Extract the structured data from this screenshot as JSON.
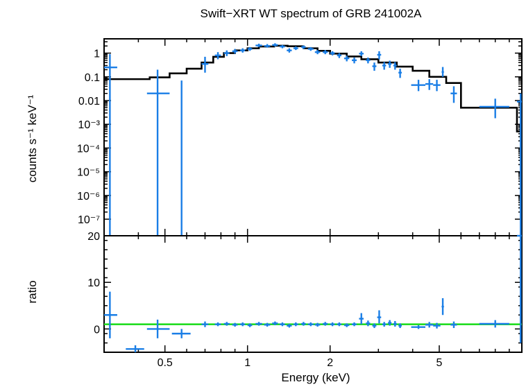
{
  "chart_data": {
    "type": "scatter",
    "title": "Swift−XRT WT spectrum of GRB 241002A",
    "xlabel": "Energy (keV)",
    "xscale": "log",
    "xlim": [
      0.3,
      10
    ],
    "x_ticks": [
      {
        "value": 0.5,
        "label": "0.5"
      },
      {
        "value": 1,
        "label": "1"
      },
      {
        "value": 2,
        "label": "2"
      },
      {
        "value": 5,
        "label": "5"
      }
    ],
    "colors": {
      "data": "#1a7ee6",
      "model": "#000000",
      "unity_line": "#22dd22"
    },
    "panels": [
      {
        "name": "spectrum",
        "ylabel": "counts s⁻¹ keV⁻¹",
        "yscale": "log",
        "ylim": [
          2e-08,
          4
        ],
        "y_ticks": [
          {
            "value": 1,
            "label": "1"
          },
          {
            "value": 0.1,
            "label": "0.1"
          },
          {
            "value": 0.01,
            "label": "0.01"
          },
          {
            "value": 0.001,
            "label": "10⁻³"
          },
          {
            "value": 0.0001,
            "label": "10⁻⁴"
          },
          {
            "value": 1e-05,
            "label": "10⁻⁵"
          },
          {
            "value": 1e-06,
            "label": "10⁻⁶"
          },
          {
            "value": 1e-07,
            "label": "10⁻⁷"
          }
        ],
        "model_step": [
          [
            0.3,
            0.08
          ],
          [
            0.4,
            0.08
          ],
          [
            0.44,
            0.095
          ],
          [
            0.52,
            0.14
          ],
          [
            0.6,
            0.22
          ],
          [
            0.68,
            0.4
          ],
          [
            0.75,
            0.7
          ],
          [
            0.82,
            1.0
          ],
          [
            0.9,
            1.3
          ],
          [
            1.0,
            1.6
          ],
          [
            1.1,
            1.9
          ],
          [
            1.25,
            2.05
          ],
          [
            1.4,
            1.95
          ],
          [
            1.6,
            1.6
          ],
          [
            1.8,
            1.25
          ],
          [
            2.0,
            0.95
          ],
          [
            2.3,
            0.72
          ],
          [
            2.6,
            0.55
          ],
          [
            3.0,
            0.4
          ],
          [
            3.5,
            0.27
          ],
          [
            4.0,
            0.18
          ],
          [
            4.6,
            0.1
          ],
          [
            5.3,
            0.055
          ],
          [
            6.0,
            0.005
          ],
          [
            9.6,
            0.0005
          ],
          [
            10,
            0.0005
          ]
        ],
        "points": [
          {
            "x": 0.315,
            "xlo": 0.3,
            "xhi": 0.335,
            "y": 0.25,
            "ylo": 2e-08,
            "yhi": 0.9
          },
          {
            "x": 0.47,
            "xlo": 0.43,
            "xhi": 0.52,
            "y": 0.02,
            "ylo": 2e-08,
            "yhi": 0.2
          },
          {
            "x": 0.575,
            "xlo": 0.575,
            "xhi": 0.575,
            "y": 0.005,
            "ylo": 2e-08,
            "yhi": 0.07
          },
          {
            "x": 0.7,
            "xlo": 0.68,
            "xhi": 0.72,
            "y": 0.35,
            "ylo": 0.15,
            "yhi": 0.7
          },
          {
            "x": 0.78,
            "xlo": 0.76,
            "xhi": 0.8,
            "y": 0.8,
            "ylo": 0.55,
            "yhi": 1.1
          },
          {
            "x": 0.84,
            "xlo": 0.82,
            "xhi": 0.86,
            "y": 1.0,
            "ylo": 0.75,
            "yhi": 1.3
          },
          {
            "x": 0.9,
            "xlo": 0.88,
            "xhi": 0.92,
            "y": 1.2,
            "ylo": 0.95,
            "yhi": 1.5
          },
          {
            "x": 0.96,
            "xlo": 0.94,
            "xhi": 0.98,
            "y": 1.3,
            "ylo": 1.05,
            "yhi": 1.6
          },
          {
            "x": 1.02,
            "xlo": 1.0,
            "xhi": 1.04,
            "y": 1.5,
            "ylo": 1.25,
            "yhi": 1.8
          },
          {
            "x": 1.1,
            "xlo": 1.07,
            "xhi": 1.13,
            "y": 2.1,
            "ylo": 1.8,
            "yhi": 2.5
          },
          {
            "x": 1.18,
            "xlo": 1.15,
            "xhi": 1.21,
            "y": 2.0,
            "ylo": 1.7,
            "yhi": 2.4
          },
          {
            "x": 1.26,
            "xlo": 1.23,
            "xhi": 1.29,
            "y": 2.2,
            "ylo": 1.9,
            "yhi": 2.6
          },
          {
            "x": 1.34,
            "xlo": 1.31,
            "xhi": 1.37,
            "y": 1.9,
            "ylo": 1.6,
            "yhi": 2.2
          },
          {
            "x": 1.42,
            "xlo": 1.39,
            "xhi": 1.45,
            "y": 1.3,
            "ylo": 1.05,
            "yhi": 1.6
          },
          {
            "x": 1.5,
            "xlo": 1.47,
            "xhi": 1.53,
            "y": 1.6,
            "ylo": 1.35,
            "yhi": 1.9
          },
          {
            "x": 1.6,
            "xlo": 1.57,
            "xhi": 1.63,
            "y": 1.8,
            "ylo": 1.5,
            "yhi": 2.1
          },
          {
            "x": 1.7,
            "xlo": 1.66,
            "xhi": 1.74,
            "y": 1.5,
            "ylo": 1.25,
            "yhi": 1.8
          },
          {
            "x": 1.8,
            "xlo": 1.76,
            "xhi": 1.84,
            "y": 1.1,
            "ylo": 0.9,
            "yhi": 1.35
          },
          {
            "x": 1.92,
            "xlo": 1.88,
            "xhi": 1.96,
            "y": 1.1,
            "ylo": 0.9,
            "yhi": 1.35
          },
          {
            "x": 2.04,
            "xlo": 2.0,
            "xhi": 2.08,
            "y": 1.0,
            "ylo": 0.8,
            "yhi": 1.2
          },
          {
            "x": 2.16,
            "xlo": 2.12,
            "xhi": 2.2,
            "y": 0.8,
            "ylo": 0.62,
            "yhi": 1.0
          },
          {
            "x": 2.3,
            "xlo": 2.25,
            "xhi": 2.35,
            "y": 0.6,
            "ylo": 0.45,
            "yhi": 0.78
          },
          {
            "x": 2.45,
            "xlo": 2.4,
            "xhi": 2.5,
            "y": 0.5,
            "ylo": 0.37,
            "yhi": 0.65
          },
          {
            "x": 2.6,
            "xlo": 2.55,
            "xhi": 2.65,
            "y": 0.95,
            "ylo": 0.75,
            "yhi": 1.2
          },
          {
            "x": 2.75,
            "xlo": 2.7,
            "xhi": 2.8,
            "y": 0.5,
            "ylo": 0.37,
            "yhi": 0.65
          },
          {
            "x": 2.9,
            "xlo": 2.85,
            "xhi": 2.95,
            "y": 0.28,
            "ylo": 0.18,
            "yhi": 0.4
          },
          {
            "x": 3.02,
            "xlo": 2.97,
            "xhi": 3.07,
            "y": 0.85,
            "ylo": 0.55,
            "yhi": 1.2
          },
          {
            "x": 3.15,
            "xlo": 3.1,
            "xhi": 3.2,
            "y": 0.3,
            "ylo": 0.2,
            "yhi": 0.42
          },
          {
            "x": 3.3,
            "xlo": 3.25,
            "xhi": 3.35,
            "y": 0.35,
            "ylo": 0.24,
            "yhi": 0.48
          },
          {
            "x": 3.45,
            "xlo": 3.4,
            "xhi": 3.5,
            "y": 0.3,
            "ylo": 0.2,
            "yhi": 0.42
          },
          {
            "x": 3.6,
            "xlo": 3.55,
            "xhi": 3.65,
            "y": 0.15,
            "ylo": 0.09,
            "yhi": 0.22
          },
          {
            "x": 4.2,
            "xlo": 3.95,
            "xhi": 4.45,
            "y": 0.045,
            "ylo": 0.025,
            "yhi": 0.075
          },
          {
            "x": 4.6,
            "xlo": 4.45,
            "xhi": 4.75,
            "y": 0.05,
            "ylo": 0.028,
            "yhi": 0.08
          },
          {
            "x": 4.9,
            "xlo": 4.75,
            "xhi": 5.05,
            "y": 0.045,
            "ylo": 0.025,
            "yhi": 0.075
          },
          {
            "x": 5.15,
            "xlo": 5.1,
            "xhi": 5.2,
            "y": 0.16,
            "ylo": 0.1,
            "yhi": 0.26
          },
          {
            "x": 5.65,
            "xlo": 5.5,
            "xhi": 5.8,
            "y": 0.02,
            "ylo": 0.008,
            "yhi": 0.04
          },
          {
            "x": 8.0,
            "xlo": 7.0,
            "xhi": 9.0,
            "y": 0.0055,
            "ylo": 0.0018,
            "yhi": 0.012
          },
          {
            "x": 9.9,
            "xlo": 9.6,
            "xhi": 10.0,
            "y": 0.009,
            "ylo": 2e-08,
            "yhi": 0.02
          }
        ]
      },
      {
        "name": "ratio",
        "ylabel": "ratio",
        "yscale": "linear",
        "ylim": [
          -5,
          20
        ],
        "y_ticks": [
          {
            "value": 0,
            "label": "0"
          },
          {
            "value": 10,
            "label": "10"
          },
          {
            "value": 20,
            "label": "20"
          }
        ],
        "unity": 1,
        "points": [
          {
            "x": 0.315,
            "xlo": 0.3,
            "xhi": 0.335,
            "y": 3,
            "ylo": -2,
            "yhi": 8
          },
          {
            "x": 0.39,
            "xlo": 0.36,
            "xhi": 0.42,
            "y": -4.3,
            "ylo": -5,
            "yhi": -3.5
          },
          {
            "x": 0.47,
            "xlo": 0.43,
            "xhi": 0.52,
            "y": 0,
            "ylo": -2,
            "yhi": 2
          },
          {
            "x": 0.575,
            "xlo": 0.53,
            "xhi": 0.62,
            "y": -1,
            "ylo": -2,
            "yhi": 0
          },
          {
            "x": 0.7,
            "xlo": 0.68,
            "xhi": 0.72,
            "y": 1.0,
            "ylo": 0.4,
            "yhi": 1.6
          },
          {
            "x": 0.78,
            "xlo": 0.76,
            "xhi": 0.8,
            "y": 1.0,
            "ylo": 0.6,
            "yhi": 1.4
          },
          {
            "x": 0.84,
            "xlo": 0.82,
            "xhi": 0.86,
            "y": 1.1,
            "ylo": 0.7,
            "yhi": 1.5
          },
          {
            "x": 0.9,
            "xlo": 0.88,
            "xhi": 0.92,
            "y": 0.9,
            "ylo": 0.5,
            "yhi": 1.3
          },
          {
            "x": 0.96,
            "xlo": 0.94,
            "xhi": 0.98,
            "y": 1.0,
            "ylo": 0.6,
            "yhi": 1.4
          },
          {
            "x": 1.02,
            "xlo": 1.0,
            "xhi": 1.04,
            "y": 0.8,
            "ylo": 0.4,
            "yhi": 1.2
          },
          {
            "x": 1.1,
            "xlo": 1.07,
            "xhi": 1.13,
            "y": 1.1,
            "ylo": 0.7,
            "yhi": 1.5
          },
          {
            "x": 1.18,
            "xlo": 1.15,
            "xhi": 1.21,
            "y": 0.9,
            "ylo": 0.5,
            "yhi": 1.3
          },
          {
            "x": 1.26,
            "xlo": 1.23,
            "xhi": 1.29,
            "y": 1.2,
            "ylo": 0.8,
            "yhi": 1.6
          },
          {
            "x": 1.34,
            "xlo": 1.31,
            "xhi": 1.37,
            "y": 1.0,
            "ylo": 0.6,
            "yhi": 1.4
          },
          {
            "x": 1.42,
            "xlo": 1.39,
            "xhi": 1.45,
            "y": 0.7,
            "ylo": 0.3,
            "yhi": 1.1
          },
          {
            "x": 1.5,
            "xlo": 1.47,
            "xhi": 1.53,
            "y": 1.0,
            "ylo": 0.6,
            "yhi": 1.4
          },
          {
            "x": 1.6,
            "xlo": 1.57,
            "xhi": 1.63,
            "y": 1.1,
            "ylo": 0.7,
            "yhi": 1.5
          },
          {
            "x": 1.7,
            "xlo": 1.66,
            "xhi": 1.74,
            "y": 1.0,
            "ylo": 0.6,
            "yhi": 1.4
          },
          {
            "x": 1.8,
            "xlo": 1.76,
            "xhi": 1.84,
            "y": 0.9,
            "ylo": 0.5,
            "yhi": 1.3
          },
          {
            "x": 1.92,
            "xlo": 1.88,
            "xhi": 1.96,
            "y": 1.1,
            "ylo": 0.7,
            "yhi": 1.5
          },
          {
            "x": 2.04,
            "xlo": 2.0,
            "xhi": 2.08,
            "y": 1.0,
            "ylo": 0.6,
            "yhi": 1.4
          },
          {
            "x": 2.16,
            "xlo": 2.12,
            "xhi": 2.2,
            "y": 1.0,
            "ylo": 0.6,
            "yhi": 1.4
          },
          {
            "x": 2.3,
            "xlo": 2.25,
            "xhi": 2.35,
            "y": 0.8,
            "ylo": 0.4,
            "yhi": 1.2
          },
          {
            "x": 2.45,
            "xlo": 2.4,
            "xhi": 2.5,
            "y": 1.0,
            "ylo": 0.6,
            "yhi": 1.4
          },
          {
            "x": 2.6,
            "xlo": 2.55,
            "xhi": 2.65,
            "y": 2.2,
            "ylo": 1.0,
            "yhi": 3.4
          },
          {
            "x": 2.75,
            "xlo": 2.7,
            "xhi": 2.8,
            "y": 1.2,
            "ylo": 0.6,
            "yhi": 1.8
          },
          {
            "x": 2.9,
            "xlo": 2.85,
            "xhi": 2.95,
            "y": 0.7,
            "ylo": 0.2,
            "yhi": 1.2
          },
          {
            "x": 3.02,
            "xlo": 2.97,
            "xhi": 3.07,
            "y": 2.5,
            "ylo": 1.2,
            "yhi": 4.0
          },
          {
            "x": 3.15,
            "xlo": 3.1,
            "xhi": 3.2,
            "y": 1.0,
            "ylo": 0.5,
            "yhi": 1.5
          },
          {
            "x": 3.3,
            "xlo": 3.25,
            "xhi": 3.35,
            "y": 1.3,
            "ylo": 0.7,
            "yhi": 1.9
          },
          {
            "x": 3.45,
            "xlo": 3.4,
            "xhi": 3.5,
            "y": 1.1,
            "ylo": 0.5,
            "yhi": 1.7
          },
          {
            "x": 3.6,
            "xlo": 3.55,
            "xhi": 3.65,
            "y": 0.7,
            "ylo": 0.2,
            "yhi": 1.2
          },
          {
            "x": 4.2,
            "xlo": 3.95,
            "xhi": 4.45,
            "y": 0.4,
            "ylo": 0.0,
            "yhi": 0.8
          },
          {
            "x": 4.6,
            "xlo": 4.45,
            "xhi": 4.75,
            "y": 0.9,
            "ylo": 0.3,
            "yhi": 1.5
          },
          {
            "x": 4.9,
            "xlo": 4.75,
            "xhi": 5.05,
            "y": 0.7,
            "ylo": 0.1,
            "yhi": 1.3
          },
          {
            "x": 5.15,
            "xlo": 5.1,
            "xhi": 5.2,
            "y": 4.8,
            "ylo": 3.0,
            "yhi": 6.6
          },
          {
            "x": 5.65,
            "xlo": 5.5,
            "xhi": 5.8,
            "y": 0.9,
            "ylo": 0.2,
            "yhi": 1.6
          },
          {
            "x": 8.0,
            "xlo": 7.0,
            "xhi": 9.0,
            "y": 1.1,
            "ylo": 0.3,
            "yhi": 1.9
          },
          {
            "x": 9.9,
            "xlo": 9.6,
            "xhi": 10.0,
            "y": 20,
            "ylo": -3,
            "yhi": 20
          }
        ]
      }
    ]
  }
}
